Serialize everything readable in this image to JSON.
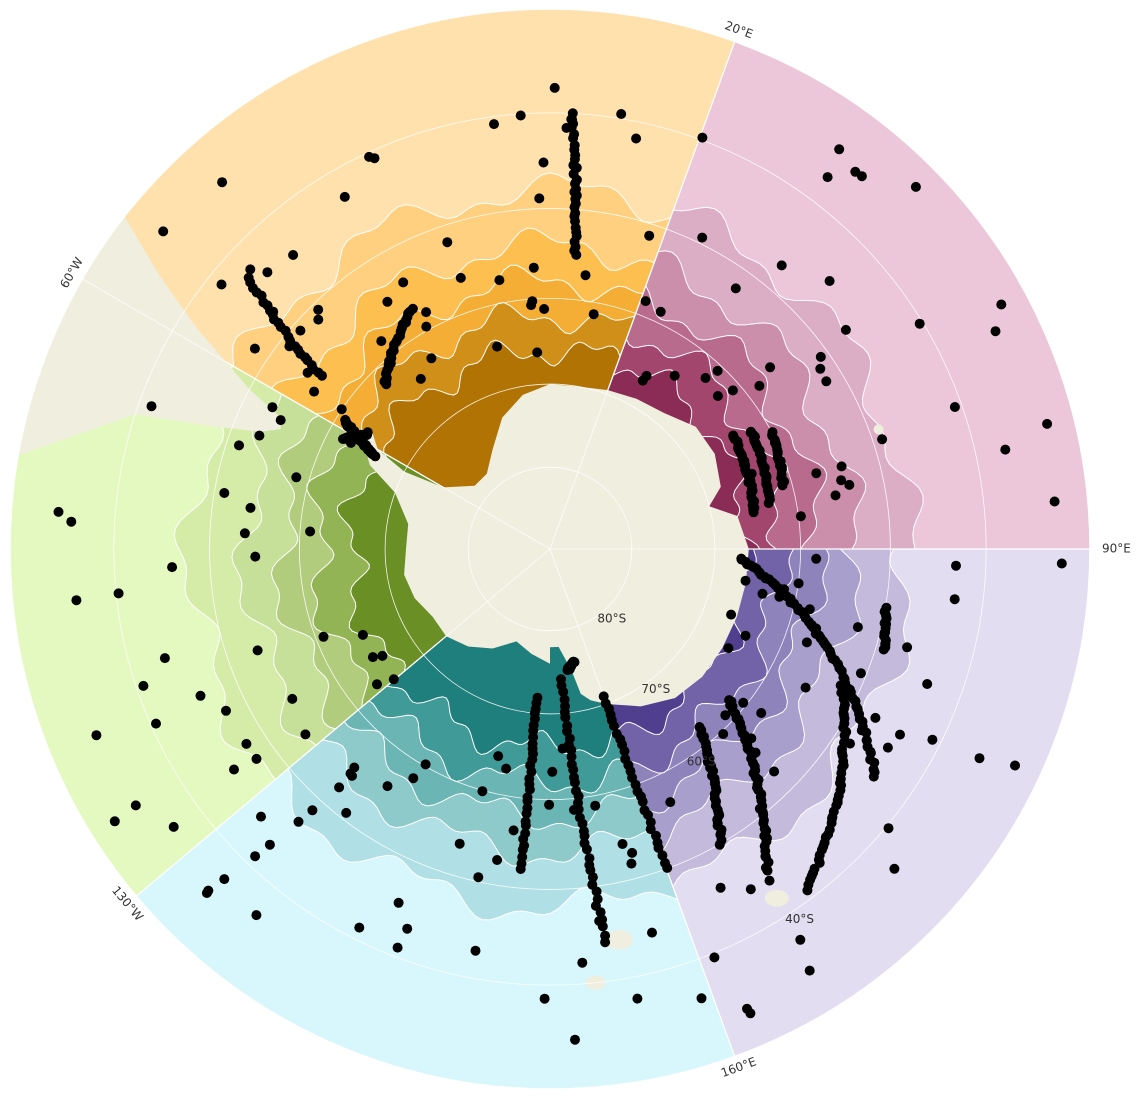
{
  "map": {
    "projection": "south-polar-stereographic",
    "lat_range": [
      -90,
      -30
    ],
    "land_color": "#f0eedf",
    "contour_color": "#ffffff",
    "graticule_color": "#ffffff",
    "point_color": "#000000",
    "lat_labels": [
      "80°S",
      "70°S",
      "60°S",
      "40°S"
    ],
    "lat_label_values": [
      -80,
      -70,
      -60,
      -40
    ],
    "lon_labels": [
      "20°E",
      "90°E",
      "160°E",
      "130°W",
      "60°W"
    ],
    "lon_label_values": [
      20,
      90,
      160,
      -130,
      -60
    ],
    "sectors": [
      {
        "name": "sector-weddell",
        "lon_start": -60,
        "lon_end": 20,
        "colors": [
          "#b07304",
          "#d08f19",
          "#f4ad35",
          "#fdbf4f",
          "#ffd07f",
          "#ffe1ad"
        ]
      },
      {
        "name": "sector-indian",
        "lon_start": 20,
        "lon_end": 90,
        "colors": [
          "#8a2c55",
          "#a2466e",
          "#b86b8d",
          "#cb8fab",
          "#dcaec6",
          "#ecc6d9"
        ]
      },
      {
        "name": "sector-east",
        "lon_start": 90,
        "lon_end": 160,
        "colors": [
          "#503e8e",
          "#7263a9",
          "#8f83bb",
          "#a99fcc",
          "#c4bbdc",
          "#e2ddf0"
        ]
      },
      {
        "name": "sector-ross",
        "lon_start": 160,
        "lon_end": 230,
        "colors": [
          "#1f7f7c",
          "#3f9a98",
          "#6cb5b5",
          "#8fcacb",
          "#b0dfe5",
          "#d7f7fd"
        ]
      },
      {
        "name": "sector-bellingshausen",
        "lon_start": 230,
        "lon_end": 300,
        "colors": [
          "#6a8f25",
          "#93b455",
          "#b2cc7e",
          "#c6e099",
          "#d5eca8",
          "#e4f9c0"
        ]
      }
    ],
    "tracks": [
      {
        "name": "track-1",
        "lon_start": 3,
        "lat_start": -40,
        "lon_end": 5,
        "lat_end": -55,
        "n": 30
      },
      {
        "name": "track-2",
        "lon_start": -30,
        "lat_start": -57,
        "lon_end": -45,
        "lat_end": -62,
        "n": 30
      },
      {
        "name": "track-3",
        "lon_start": -48,
        "lat_start": -43,
        "lon_end": -53,
        "lat_end": -56,
        "n": 24
      },
      {
        "name": "track-4",
        "lon_start": -62,
        "lat_start": -62,
        "lon_end": -58,
        "lat_end": -64,
        "n": 26
      },
      {
        "name": "track-5",
        "lon_start": -58,
        "lat_start": -61,
        "lon_end": -62,
        "lat_end": -66,
        "n": 40
      },
      {
        "name": "track-6",
        "lon_start": 58,
        "lat_start": -64,
        "lon_end": 80,
        "lat_end": -65,
        "n": 30
      },
      {
        "name": "track-7",
        "lon_start": 60,
        "lat_start": -62,
        "lon_end": 78,
        "lat_end": -63,
        "n": 30
      },
      {
        "name": "track-8",
        "lon_start": 62,
        "lat_start": -60,
        "lon_end": 75,
        "lat_end": -61,
        "n": 22
      },
      {
        "name": "track-9",
        "lon_start": 93,
        "lat_start": -67,
        "lon_end": 125,
        "lat_end": -44,
        "n": 70
      },
      {
        "name": "track-10",
        "lon_start": 115,
        "lat_start": -52,
        "lon_end": 143,
        "lat_end": -41,
        "n": 50
      },
      {
        "name": "track-11",
        "lon_start": 130,
        "lat_start": -62,
        "lon_end": 146,
        "lat_end": -45,
        "n": 50
      },
      {
        "name": "track-12",
        "lon_start": 140,
        "lat_start": -62,
        "lon_end": 150,
        "lat_end": -50,
        "n": 36
      },
      {
        "name": "track-13",
        "lon_start": 100,
        "lat_start": -50,
        "lon_end": 107,
        "lat_end": -49,
        "n": 16
      },
      {
        "name": "track-14",
        "lon_start": 175,
        "lat_start": -74,
        "lon_end": 172,
        "lat_end": -44,
        "n": 40
      },
      {
        "name": "track-15",
        "lon_start": 185,
        "lat_start": -72,
        "lon_end": 185,
        "lat_end": -52,
        "n": 30
      },
      {
        "name": "track-16",
        "lon_start": 160,
        "lat_start": -71,
        "lon_end": 160,
        "lat_end": -50,
        "n": 28
      },
      {
        "name": "track-17",
        "lon_start": 168,
        "lat_start": -76,
        "lon_end": 172,
        "lat_end": -75,
        "n": 16
      }
    ]
  }
}
